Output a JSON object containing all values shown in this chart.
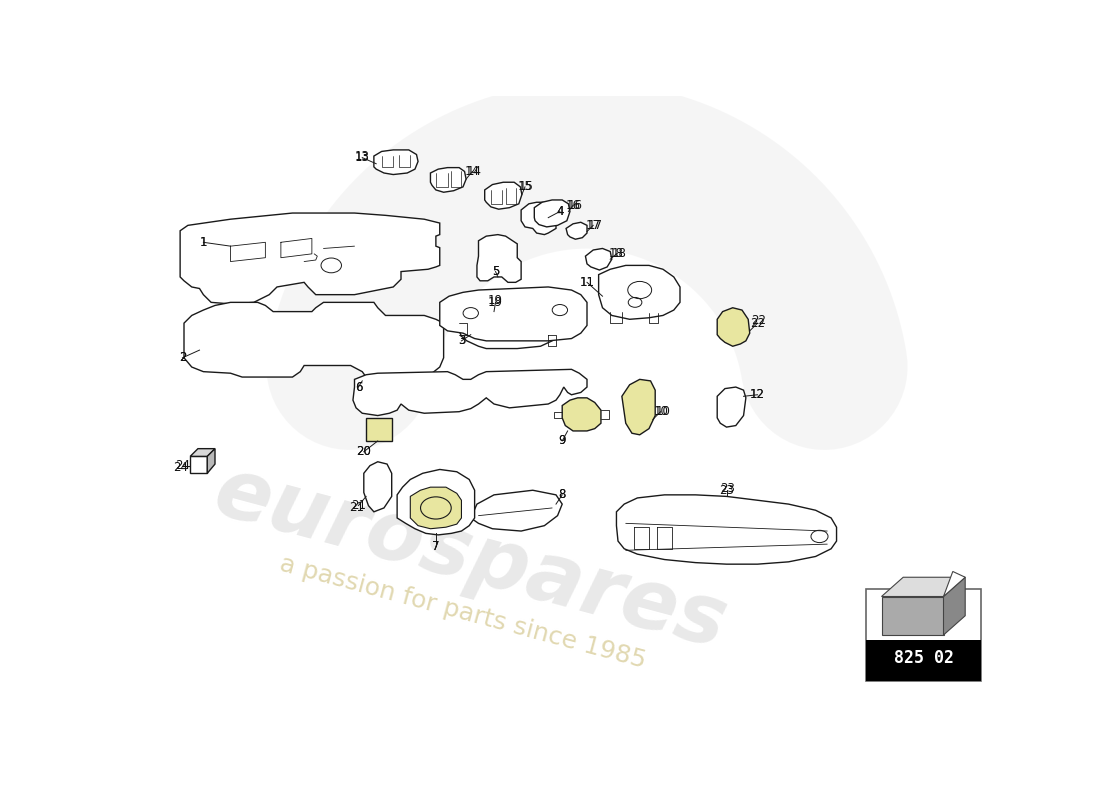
{
  "bg_color": "#ffffff",
  "part_number": "825 02",
  "watermark_text": "eurospares",
  "watermark_sub": "a passion for parts since 1985",
  "lc": "#1a1a1a",
  "lw": 1.0,
  "yellow": "#e8e6a0",
  "gray_light": "#d0d0d0",
  "gray_dark": "#888888"
}
